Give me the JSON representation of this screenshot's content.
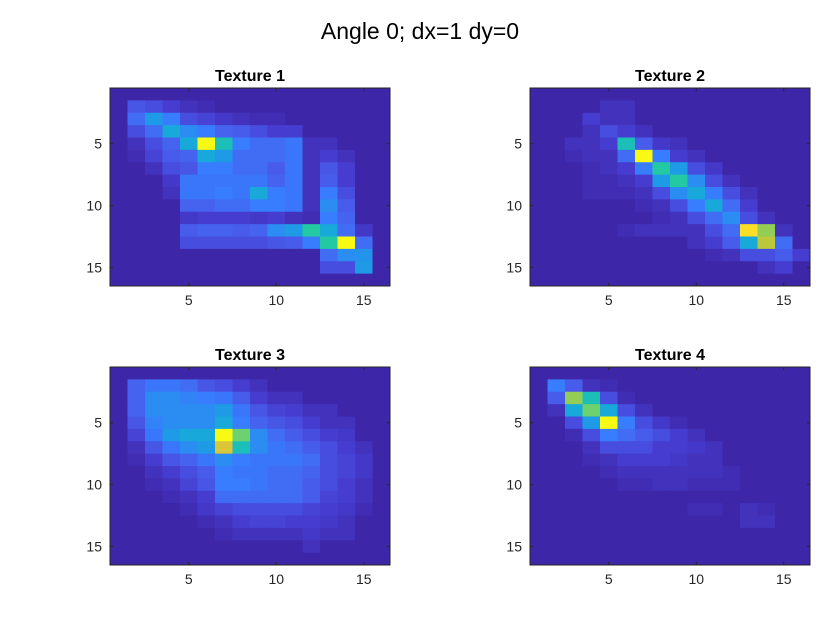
{
  "figure": {
    "title": "Angle 0; dx=1 dy=0"
  },
  "chart_data": [
    {
      "type": "heatmap",
      "title": "Texture 1",
      "xlim": [
        0.5,
        16.5
      ],
      "ylim": [
        0.5,
        16.5
      ],
      "y_reversed": true,
      "xticks": [
        5,
        10,
        15
      ],
      "yticks": [
        5,
        10,
        15
      ],
      "colormap": "parula",
      "clim": [
        0,
        100
      ],
      "matrix": [
        [
          0,
          0,
          0,
          0,
          0,
          0,
          0,
          0,
          0,
          0,
          0,
          0,
          0,
          0,
          0,
          0
        ],
        [
          0,
          18,
          15,
          10,
          5,
          3,
          0,
          0,
          0,
          0,
          0,
          0,
          0,
          0,
          0,
          0
        ],
        [
          0,
          25,
          40,
          30,
          15,
          12,
          8,
          5,
          3,
          3,
          0,
          0,
          0,
          0,
          0,
          0
        ],
        [
          0,
          15,
          25,
          45,
          35,
          30,
          22,
          20,
          15,
          10,
          10,
          0,
          0,
          0,
          0,
          0
        ],
        [
          0,
          5,
          15,
          22,
          45,
          100,
          55,
          30,
          25,
          25,
          28,
          5,
          5,
          0,
          0,
          0
        ],
        [
          0,
          3,
          12,
          20,
          22,
          45,
          40,
          25,
          25,
          25,
          28,
          5,
          10,
          5,
          0,
          0
        ],
        [
          0,
          0,
          5,
          15,
          18,
          30,
          30,
          25,
          25,
          20,
          28,
          5,
          18,
          10,
          0,
          0
        ],
        [
          0,
          0,
          0,
          8,
          28,
          28,
          28,
          28,
          28,
          22,
          28,
          5,
          20,
          10,
          0,
          0
        ],
        [
          0,
          0,
          0,
          5,
          28,
          28,
          30,
          28,
          45,
          30,
          28,
          5,
          30,
          15,
          0,
          0
        ],
        [
          0,
          0,
          0,
          0,
          22,
          22,
          25,
          25,
          30,
          30,
          28,
          5,
          35,
          20,
          0,
          0
        ],
        [
          0,
          0,
          0,
          0,
          8,
          10,
          10,
          10,
          8,
          10,
          5,
          3,
          30,
          22,
          0,
          0
        ],
        [
          0,
          0,
          0,
          0,
          20,
          22,
          22,
          20,
          22,
          35,
          40,
          60,
          45,
          25,
          8,
          0
        ],
        [
          0,
          0,
          0,
          0,
          15,
          15,
          15,
          15,
          15,
          18,
          20,
          30,
          60,
          100,
          25,
          0
        ],
        [
          0,
          0,
          0,
          0,
          0,
          0,
          0,
          0,
          0,
          0,
          0,
          0,
          25,
          35,
          38,
          0
        ],
        [
          0,
          0,
          0,
          0,
          0,
          0,
          0,
          0,
          0,
          0,
          0,
          0,
          15,
          15,
          40,
          0
        ],
        [
          0,
          0,
          0,
          0,
          0,
          0,
          0,
          0,
          0,
          0,
          0,
          0,
          0,
          0,
          0,
          0
        ]
      ]
    },
    {
      "type": "heatmap",
      "title": "Texture 2",
      "xlim": [
        0.5,
        16.5
      ],
      "ylim": [
        0.5,
        16.5
      ],
      "y_reversed": true,
      "xticks": [
        5,
        10,
        15
      ],
      "yticks": [
        5,
        10,
        15
      ],
      "colormap": "parula",
      "clim": [
        0,
        100
      ],
      "matrix": [
        [
          0,
          0,
          0,
          0,
          0,
          0,
          0,
          0,
          0,
          0,
          0,
          0,
          0,
          0,
          0,
          0
        ],
        [
          0,
          0,
          0,
          0,
          5,
          5,
          0,
          0,
          0,
          0,
          0,
          0,
          0,
          0,
          0,
          0
        ],
        [
          0,
          0,
          0,
          10,
          5,
          5,
          0,
          0,
          0,
          0,
          0,
          0,
          0,
          0,
          0,
          0
        ],
        [
          0,
          0,
          0,
          5,
          15,
          10,
          5,
          0,
          0,
          0,
          0,
          0,
          0,
          0,
          0,
          0
        ],
        [
          0,
          0,
          5,
          5,
          10,
          55,
          20,
          8,
          5,
          0,
          0,
          0,
          0,
          0,
          0,
          0
        ],
        [
          0,
          0,
          3,
          5,
          5,
          25,
          100,
          30,
          10,
          5,
          0,
          0,
          0,
          0,
          0,
          0
        ],
        [
          0,
          0,
          0,
          3,
          5,
          10,
          30,
          60,
          40,
          15,
          8,
          0,
          0,
          0,
          0,
          0
        ],
        [
          0,
          0,
          0,
          3,
          3,
          5,
          10,
          40,
          60,
          35,
          15,
          5,
          0,
          0,
          0,
          0
        ],
        [
          0,
          0,
          0,
          3,
          3,
          3,
          5,
          15,
          35,
          45,
          30,
          15,
          5,
          0,
          0,
          0
        ],
        [
          0,
          0,
          0,
          0,
          0,
          0,
          3,
          5,
          15,
          30,
          45,
          25,
          10,
          0,
          0,
          0
        ],
        [
          0,
          0,
          0,
          0,
          0,
          0,
          0,
          3,
          5,
          15,
          25,
          35,
          15,
          5,
          0,
          0
        ],
        [
          0,
          0,
          0,
          0,
          0,
          3,
          5,
          5,
          5,
          5,
          15,
          25,
          95,
          75,
          5,
          0
        ],
        [
          0,
          0,
          0,
          0,
          0,
          0,
          0,
          0,
          0,
          5,
          10,
          20,
          45,
          80,
          25,
          0
        ],
        [
          0,
          0,
          0,
          0,
          0,
          0,
          0,
          0,
          0,
          0,
          3,
          5,
          15,
          15,
          20,
          10
        ],
        [
          0,
          0,
          0,
          0,
          0,
          0,
          0,
          0,
          0,
          0,
          0,
          0,
          0,
          5,
          10,
          0
        ],
        [
          0,
          0,
          0,
          0,
          0,
          0,
          0,
          0,
          0,
          0,
          0,
          0,
          0,
          0,
          0,
          0
        ]
      ]
    },
    {
      "type": "heatmap",
      "title": "Texture 3",
      "xlim": [
        0.5,
        16.5
      ],
      "ylim": [
        0.5,
        16.5
      ],
      "y_reversed": true,
      "xticks": [
        5,
        10,
        15
      ],
      "yticks": [
        5,
        10,
        15
      ],
      "colormap": "parula",
      "clim": [
        0,
        100
      ],
      "matrix": [
        [
          0,
          0,
          0,
          0,
          0,
          0,
          0,
          0,
          0,
          0,
          0,
          0,
          0,
          0,
          0,
          0
        ],
        [
          0,
          22,
          28,
          28,
          25,
          18,
          15,
          10,
          5,
          0,
          0,
          0,
          0,
          0,
          0,
          0
        ],
        [
          0,
          22,
          35,
          35,
          32,
          30,
          28,
          20,
          10,
          5,
          5,
          0,
          0,
          0,
          0,
          0
        ],
        [
          0,
          22,
          35,
          35,
          35,
          35,
          40,
          28,
          18,
          12,
          10,
          5,
          5,
          0,
          0,
          0
        ],
        [
          0,
          18,
          32,
          35,
          35,
          35,
          45,
          30,
          22,
          18,
          15,
          10,
          5,
          5,
          0,
          0
        ],
        [
          0,
          12,
          28,
          40,
          45,
          45,
          100,
          70,
          35,
          25,
          20,
          15,
          10,
          8,
          0,
          0
        ],
        [
          0,
          5,
          18,
          28,
          35,
          40,
          85,
          55,
          35,
          28,
          25,
          20,
          15,
          10,
          5,
          0
        ],
        [
          0,
          3,
          10,
          18,
          22,
          28,
          35,
          30,
          28,
          28,
          28,
          25,
          15,
          12,
          8,
          0
        ],
        [
          0,
          0,
          5,
          10,
          15,
          20,
          30,
          28,
          28,
          25,
          25,
          22,
          15,
          12,
          8,
          0
        ],
        [
          0,
          0,
          3,
          5,
          12,
          18,
          30,
          30,
          28,
          25,
          25,
          20,
          15,
          10,
          5,
          0
        ],
        [
          0,
          0,
          0,
          3,
          5,
          10,
          25,
          25,
          25,
          25,
          25,
          20,
          12,
          10,
          5,
          0
        ],
        [
          0,
          0,
          0,
          0,
          3,
          8,
          12,
          15,
          15,
          15,
          15,
          12,
          10,
          8,
          3,
          0
        ],
        [
          0,
          0,
          0,
          0,
          0,
          3,
          5,
          10,
          12,
          12,
          10,
          10,
          8,
          5,
          0,
          0
        ],
        [
          0,
          0,
          0,
          0,
          0,
          0,
          3,
          5,
          5,
          5,
          5,
          8,
          5,
          5,
          0,
          0
        ],
        [
          0,
          0,
          0,
          0,
          0,
          0,
          0,
          0,
          0,
          0,
          0,
          5,
          0,
          0,
          0,
          0
        ],
        [
          0,
          0,
          0,
          0,
          0,
          0,
          0,
          0,
          0,
          0,
          0,
          0,
          0,
          0,
          0,
          0
        ]
      ]
    },
    {
      "type": "heatmap",
      "title": "Texture 4",
      "xlim": [
        0.5,
        16.5
      ],
      "ylim": [
        0.5,
        16.5
      ],
      "y_reversed": true,
      "xticks": [
        5,
        10,
        15
      ],
      "yticks": [
        5,
        10,
        15
      ],
      "colormap": "parula",
      "clim": [
        0,
        100
      ],
      "matrix": [
        [
          0,
          0,
          0,
          0,
          0,
          0,
          0,
          0,
          0,
          0,
          0,
          0,
          0,
          0,
          0,
          0
        ],
        [
          0,
          30,
          20,
          5,
          3,
          0,
          0,
          0,
          0,
          0,
          0,
          0,
          0,
          0,
          0,
          0
        ],
        [
          0,
          20,
          75,
          55,
          15,
          3,
          0,
          0,
          0,
          0,
          0,
          0,
          0,
          0,
          0,
          0
        ],
        [
          0,
          5,
          45,
          70,
          45,
          15,
          5,
          0,
          0,
          0,
          0,
          0,
          0,
          0,
          0,
          0
        ],
        [
          0,
          0,
          15,
          40,
          100,
          30,
          15,
          8,
          3,
          0,
          0,
          0,
          0,
          0,
          0,
          0
        ],
        [
          0,
          0,
          3,
          15,
          30,
          25,
          20,
          15,
          10,
          5,
          0,
          0,
          0,
          0,
          0,
          0
        ],
        [
          0,
          0,
          0,
          5,
          15,
          15,
          15,
          10,
          10,
          8,
          5,
          0,
          0,
          0,
          0,
          0
        ],
        [
          0,
          0,
          0,
          3,
          5,
          10,
          10,
          10,
          8,
          5,
          5,
          0,
          0,
          0,
          0,
          0
        ],
        [
          0,
          0,
          0,
          0,
          3,
          5,
          5,
          5,
          5,
          5,
          5,
          3,
          0,
          0,
          0,
          0
        ],
        [
          0,
          0,
          0,
          0,
          0,
          3,
          3,
          5,
          5,
          3,
          3,
          3,
          0,
          0,
          0,
          0
        ],
        [
          0,
          0,
          0,
          0,
          0,
          0,
          0,
          0,
          0,
          0,
          0,
          0,
          0,
          0,
          0,
          0
        ],
        [
          0,
          0,
          0,
          0,
          0,
          0,
          0,
          0,
          0,
          3,
          3,
          0,
          5,
          3,
          0,
          0
        ],
        [
          0,
          0,
          0,
          0,
          0,
          0,
          0,
          0,
          0,
          0,
          0,
          0,
          5,
          5,
          0,
          0
        ],
        [
          0,
          0,
          0,
          0,
          0,
          0,
          0,
          0,
          0,
          0,
          0,
          0,
          0,
          0,
          0,
          0
        ],
        [
          0,
          0,
          0,
          0,
          0,
          0,
          0,
          0,
          0,
          0,
          0,
          0,
          0,
          0,
          0,
          0
        ],
        [
          0,
          0,
          0,
          0,
          0,
          0,
          0,
          0,
          0,
          0,
          0,
          0,
          0,
          0,
          0,
          0
        ]
      ]
    }
  ]
}
